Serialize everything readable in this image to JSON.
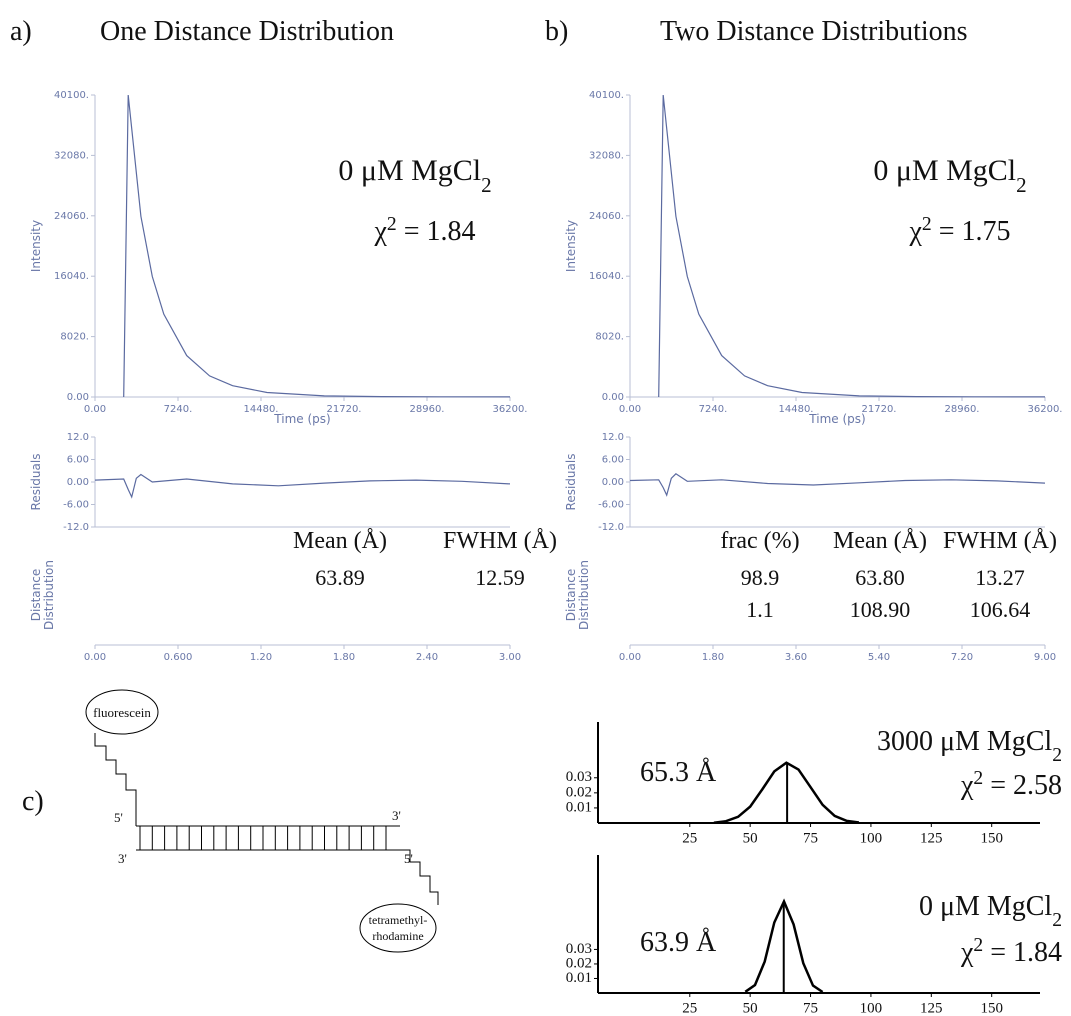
{
  "panels": {
    "a": {
      "label": "a)",
      "title": "One Distance Distribution",
      "decay": {
        "ylabel": "Intensity",
        "xlabel": "Time (ps)",
        "color": "#5b6aa0",
        "xlim": [
          0,
          36200
        ],
        "ylim": [
          0,
          40100
        ],
        "xticks": [
          {
            "value": 0,
            "label": "0.00"
          },
          {
            "value": 7240,
            "label": "7240."
          },
          {
            "value": 14480,
            "label": "14480."
          },
          {
            "value": 21720,
            "label": "21720."
          },
          {
            "value": 28960,
            "label": "28960."
          },
          {
            "value": 36200,
            "label": "36200."
          }
        ],
        "yticks": [
          {
            "value": 0,
            "label": "0.00"
          },
          {
            "value": 8020,
            "label": "8020."
          },
          {
            "value": 16040,
            "label": "16040."
          },
          {
            "value": 24060,
            "label": "24060."
          },
          {
            "value": 32080,
            "label": "32080."
          },
          {
            "value": 40100,
            "label": "40100."
          }
        ],
        "x": [
          2500,
          2900,
          4000,
          5000,
          6000,
          8000,
          10000,
          12000,
          15000,
          20000,
          25000,
          30000,
          36200
        ],
        "y": [
          0,
          40100,
          24000,
          16000,
          11000,
          5500,
          2800,
          1500,
          600,
          150,
          50,
          20,
          10
        ]
      },
      "residuals": {
        "ylabel": "Residuals",
        "color": "#5b6aa0",
        "xlim": [
          0,
          36200
        ],
        "ylim": [
          -12,
          12
        ],
        "yticks": [
          {
            "value": 12,
            "label": "12.0"
          },
          {
            "value": 6,
            "label": "6.00"
          },
          {
            "value": 0,
            "label": "0.00"
          },
          {
            "value": -6,
            "label": "-6.00"
          },
          {
            "value": -12,
            "label": "-12.0"
          }
        ],
        "x": [
          0,
          2500,
          2900,
          3200,
          3600,
          4000,
          5000,
          8000,
          12000,
          16000,
          20000,
          24000,
          28000,
          32000,
          36200
        ],
        "y": [
          0.5,
          0.8,
          -2,
          -4,
          1,
          2,
          0,
          0.8,
          -0.5,
          -1,
          -0.3,
          0.3,
          0.5,
          0.2,
          -0.5
        ]
      },
      "distance": {
        "ylabel": [
          "Distance",
          "Distribution"
        ],
        "xlim": [
          0,
          3
        ],
        "xticks": [
          {
            "value": 0,
            "label": "0.00"
          },
          {
            "value": 0.6,
            "label": "0.600"
          },
          {
            "value": 1.2,
            "label": "1.20"
          },
          {
            "value": 1.8,
            "label": "1.80"
          },
          {
            "value": 2.4,
            "label": "2.40"
          },
          {
            "value": 3,
            "label": "3.00"
          }
        ]
      },
      "condition": {
        "text": "0 μM MgCl",
        "sub": "2"
      },
      "chi": {
        "symbol": "χ",
        "sup": "2",
        "text": " = 1.84"
      },
      "table": {
        "headers": [
          "Mean (Å)",
          "FWHM (Å)"
        ],
        "rows": [
          [
            "63.89",
            "12.59"
          ]
        ]
      }
    },
    "b": {
      "label": "b)",
      "title": "Two Distance Distributions",
      "decay": {
        "ylabel": "Intensity",
        "xlabel": "Time (ps)",
        "color": "#5b6aa0",
        "xlim": [
          0,
          36200
        ],
        "ylim": [
          0,
          40100
        ],
        "xticks": [
          {
            "value": 0,
            "label": "0.00"
          },
          {
            "value": 7240,
            "label": "7240."
          },
          {
            "value": 14480,
            "label": "14480."
          },
          {
            "value": 21720,
            "label": "21720."
          },
          {
            "value": 28960,
            "label": "28960."
          },
          {
            "value": 36200,
            "label": "36200."
          }
        ],
        "yticks": [
          {
            "value": 0,
            "label": "0.00"
          },
          {
            "value": 8020,
            "label": "8020."
          },
          {
            "value": 16040,
            "label": "16040."
          },
          {
            "value": 24060,
            "label": "24060."
          },
          {
            "value": 32080,
            "label": "32080."
          },
          {
            "value": 40100,
            "label": "40100."
          }
        ],
        "x": [
          2500,
          2900,
          4000,
          5000,
          6000,
          8000,
          10000,
          12000,
          15000,
          20000,
          25000,
          30000,
          36200
        ],
        "y": [
          0,
          40100,
          24000,
          16000,
          11000,
          5500,
          2800,
          1500,
          600,
          150,
          50,
          20,
          10
        ]
      },
      "residuals": {
        "ylabel": "Residuals",
        "color": "#5b6aa0",
        "xlim": [
          0,
          36200
        ],
        "ylim": [
          -12,
          12
        ],
        "yticks": [
          {
            "value": 12,
            "label": "12.0"
          },
          {
            "value": 6,
            "label": "6.00"
          },
          {
            "value": 0,
            "label": "0.00"
          },
          {
            "value": -6,
            "label": "-6.00"
          },
          {
            "value": -12,
            "label": "-12.0"
          }
        ],
        "x": [
          0,
          2500,
          2900,
          3200,
          3600,
          4000,
          5000,
          8000,
          12000,
          16000,
          20000,
          24000,
          28000,
          32000,
          36200
        ],
        "y": [
          0.4,
          0.6,
          -1.5,
          -3.5,
          1,
          2.2,
          0.2,
          0.6,
          -0.4,
          -0.8,
          -0.2,
          0.4,
          0.6,
          0.3,
          -0.3
        ]
      },
      "distance": {
        "ylabel": [
          "Distance",
          "Distribution"
        ],
        "xlim": [
          0,
          9
        ],
        "xticks": [
          {
            "value": 0,
            "label": "0.00"
          },
          {
            "value": 1.8,
            "label": "1.80"
          },
          {
            "value": 3.6,
            "label": "3.60"
          },
          {
            "value": 5.4,
            "label": "5.40"
          },
          {
            "value": 7.2,
            "label": "7.20"
          },
          {
            "value": 9,
            "label": "9.00"
          }
        ]
      },
      "condition": {
        "text": "0 μM MgCl",
        "sub": "2"
      },
      "chi": {
        "symbol": "χ",
        "sup": "2",
        "text": " = 1.75"
      },
      "table": {
        "headers": [
          "frac (%)",
          "Mean (Å)",
          "FWHM (Å)"
        ],
        "rows": [
          [
            "98.9",
            "63.80",
            "13.27"
          ],
          [
            "1.1",
            "108.90",
            "106.64"
          ]
        ]
      }
    }
  },
  "diagram": {
    "label": "c)",
    "donor": "fluorescein",
    "acceptor": [
      "tetramethyl-",
      "rhodamine"
    ],
    "ends": [
      "5'",
      "3'",
      "3'",
      "5'"
    ]
  },
  "distributions": [
    {
      "xlim": [
        -13,
        170
      ],
      "ylim": [
        0,
        0.067
      ],
      "xticks": [
        25,
        50,
        75,
        100,
        125,
        150
      ],
      "yticks": [
        0.03,
        0.02,
        0.01
      ],
      "x": [
        35,
        40,
        45,
        50,
        55,
        60,
        65,
        70,
        75,
        80,
        85,
        90,
        95
      ],
      "y": [
        0.0002,
        0.0012,
        0.0041,
        0.0109,
        0.0222,
        0.0342,
        0.04,
        0.0354,
        0.0238,
        0.0121,
        0.0047,
        0.0014,
        0.0003
      ],
      "mean": 65.3,
      "mean_label": "65.3 Å",
      "condition": {
        "text": "3000 μM MgCl",
        "sub": "2"
      },
      "chi": {
        "symbol": "χ",
        "sup": "2",
        "text": " = 2.58"
      }
    },
    {
      "xlim": [
        -13,
        170
      ],
      "ylim": [
        0,
        0.095
      ],
      "xticks": [
        25,
        50,
        75,
        100,
        125,
        150
      ],
      "yticks": [
        0.03,
        0.02,
        0.01
      ],
      "x": [
        48,
        52,
        56,
        60,
        64,
        68,
        72,
        76,
        80
      ],
      "y": [
        0.0008,
        0.0055,
        0.0216,
        0.0485,
        0.063,
        0.0472,
        0.0205,
        0.0051,
        0.0007
      ],
      "mean": 63.9,
      "mean_label": "63.9 Å",
      "condition": {
        "text": "0 μM MgCl",
        "sub": "2"
      },
      "chi": {
        "symbol": "χ",
        "sup": "2",
        "text": " = 1.84"
      }
    }
  ]
}
